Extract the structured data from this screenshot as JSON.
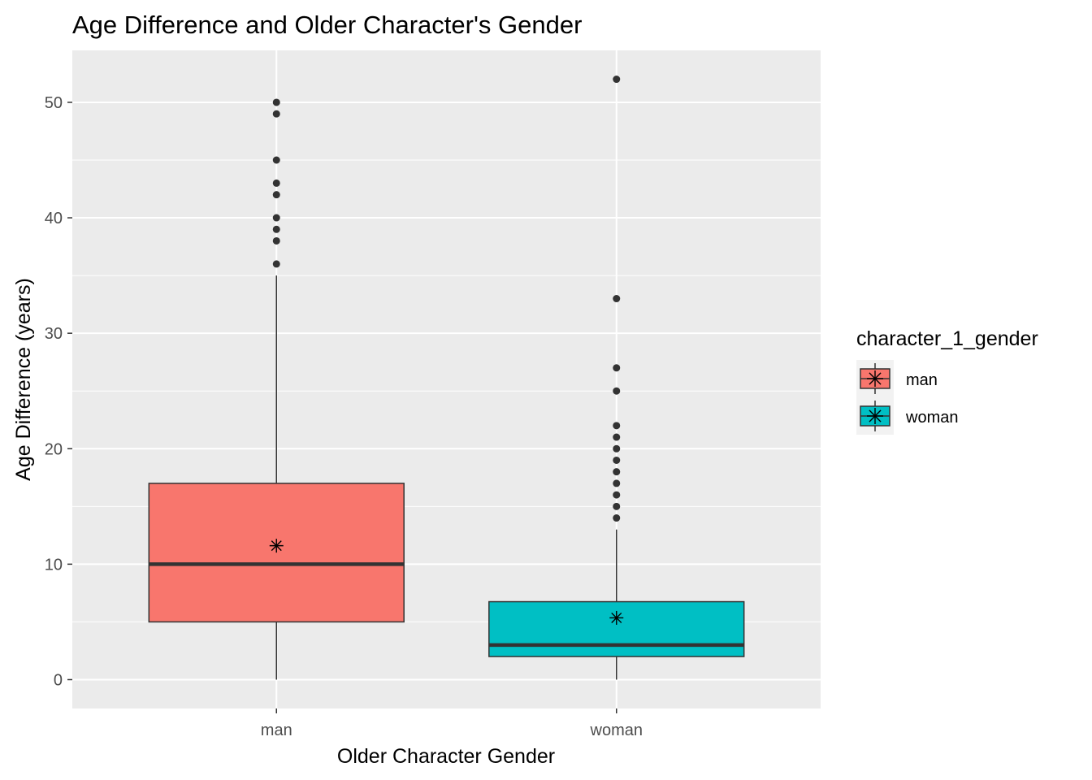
{
  "chart_data": {
    "type": "boxplot",
    "title": "Age Difference and Older Character's Gender",
    "xlabel": "Older Character Gender",
    "ylabel": "Age Difference (years)",
    "categories": [
      "man",
      "woman"
    ],
    "ylim": [
      -2.5,
      54.5
    ],
    "yticks": [
      0,
      10,
      20,
      30,
      40,
      50
    ],
    "grid": true,
    "legend": {
      "title": "character_1_gender",
      "position": "right",
      "entries": [
        "man",
        "woman"
      ]
    },
    "series": [
      {
        "category": "man",
        "color": "#f8766d",
        "whisker_low": 0,
        "q1": 5,
        "median": 10,
        "q3": 17,
        "whisker_high": 35,
        "mean": 11.6,
        "outliers": [
          36,
          38,
          39,
          40,
          42,
          43,
          45,
          49,
          50
        ]
      },
      {
        "category": "woman",
        "color": "#00bfc4",
        "whisker_low": 0,
        "q1": 2,
        "median": 3,
        "q3": 6.75,
        "whisker_high": 13,
        "mean": 5.35,
        "outliers": [
          14,
          15,
          16,
          17,
          18,
          19,
          20,
          21,
          22,
          25,
          27,
          33,
          52
        ]
      }
    ]
  }
}
